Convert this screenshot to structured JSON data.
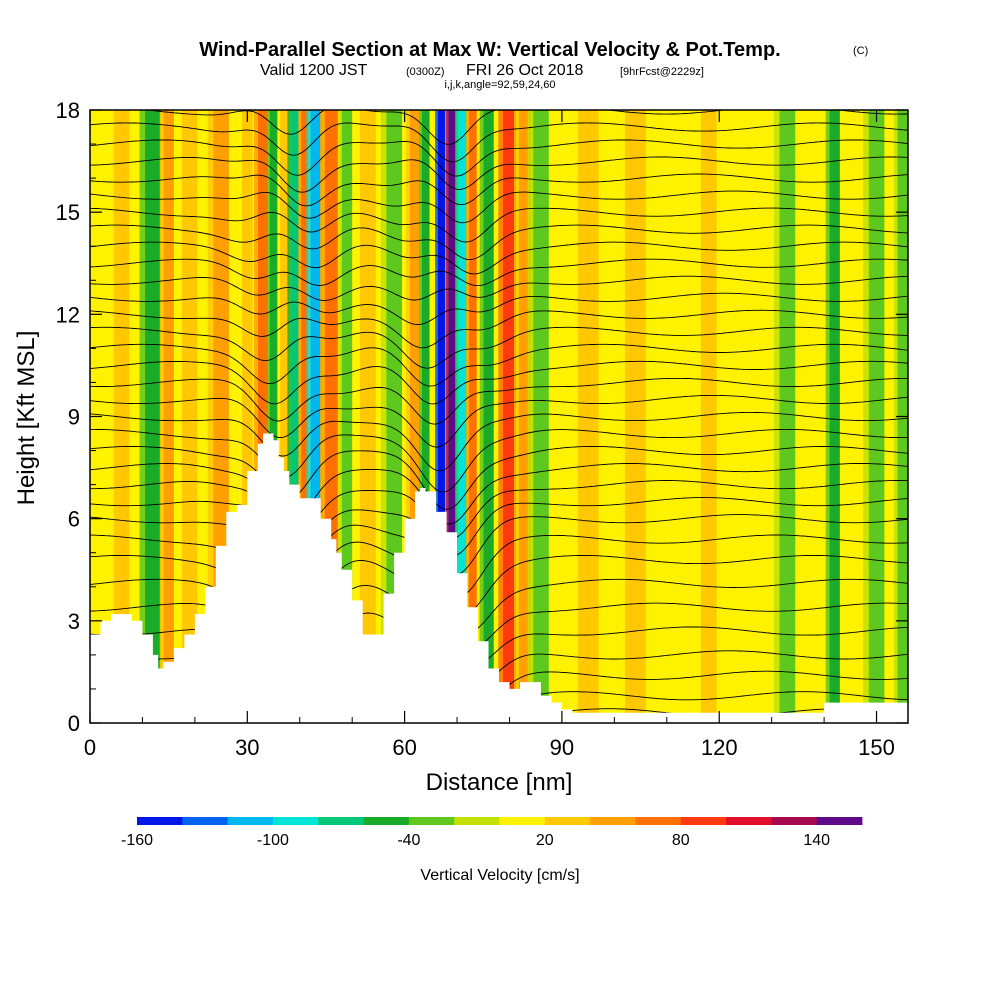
{
  "title": {
    "main": "Wind-Parallel Section at Max W: Vertical Velocity & Pot.Temp.",
    "copyright": "(C)",
    "valid_prefix": "Valid 1200 JST",
    "valid_utc": "(0300Z)",
    "valid_date": "FRI 26 Oct 2018",
    "forecast": "[9hrFcst@2229z]",
    "params": "i,j,k,angle=92,59,24,60"
  },
  "chart_data": {
    "type": "heatmap",
    "xlabel": "Distance [nm]",
    "ylabel": "Height [Kft MSL]",
    "xlim": [
      0,
      156
    ],
    "ylim": [
      0,
      18
    ],
    "x_ticks": [
      "0",
      "30",
      "60",
      "90",
      "120",
      "150"
    ],
    "x_tick_values": [
      0,
      30,
      60,
      90,
      120,
      150
    ],
    "y_ticks": [
      "0",
      "3",
      "6",
      "9",
      "12",
      "15",
      "18"
    ],
    "y_tick_values": [
      0,
      3,
      6,
      9,
      12,
      15,
      18
    ],
    "colorbar": {
      "label": "Vertical Velocity [cm/s]",
      "tick_labels": [
        "-160",
        "-100",
        "-40",
        "20",
        "80",
        "140"
      ],
      "tick_values": [
        -160,
        -100,
        -40,
        20,
        80,
        140
      ],
      "levels": [
        -160,
        -140,
        -120,
        -100,
        -80,
        -60,
        -40,
        -20,
        0,
        20,
        40,
        60,
        80,
        100,
        120,
        140,
        160
      ],
      "colors": [
        "#0015e8",
        "#0062f0",
        "#00b8f0",
        "#00e5d8",
        "#00c878",
        "#1aac28",
        "#5ec81e",
        "#c2e000",
        "#fff200",
        "#ffc800",
        "#ffa000",
        "#ff7000",
        "#ff3a10",
        "#e0102a",
        "#a80a50",
        "#5e0a8a"
      ]
    },
    "terrain": {
      "x": [
        0,
        2,
        4,
        6,
        8,
        10,
        12,
        13,
        14,
        16,
        18,
        20,
        22,
        24,
        26,
        28,
        30,
        32,
        33,
        34,
        35,
        36,
        37,
        38,
        40,
        42,
        44,
        46,
        47,
        48,
        50,
        52,
        54,
        56,
        58,
        60,
        62,
        63,
        64,
        66,
        68,
        70,
        72,
        74,
        76,
        78,
        80,
        82,
        84,
        86,
        88,
        90,
        92,
        96,
        100,
        110,
        120,
        130,
        138,
        140,
        145,
        150,
        156
      ],
      "y": [
        2.6,
        3.0,
        3.2,
        3.2,
        3.0,
        2.6,
        2.0,
        1.6,
        1.8,
        2.2,
        2.6,
        3.2,
        4.0,
        5.2,
        6.2,
        6.4,
        7.4,
        8.2,
        8.5,
        8.5,
        8.3,
        7.8,
        7.4,
        7.0,
        6.6,
        6.6,
        6.0,
        5.4,
        5.0,
        4.5,
        3.6,
        2.6,
        2.6,
        3.8,
        5.0,
        6.0,
        6.8,
        6.9,
        6.8,
        6.2,
        5.6,
        4.4,
        3.4,
        2.4,
        1.6,
        1.2,
        1.0,
        1.2,
        1.2,
        0.8,
        0.6,
        0.4,
        0.3,
        0.3,
        0.3,
        0.3,
        0.3,
        0.3,
        0.3,
        0.6,
        0.6,
        0.6,
        0.6
      ]
    },
    "vertical_velocity_bands": [
      {
        "x": 6,
        "width": 3,
        "value": 30
      },
      {
        "x": 12,
        "width": 3,
        "value": -45
      },
      {
        "x": 15,
        "width": 2,
        "value": 55
      },
      {
        "x": 19,
        "width": 3,
        "value": 25
      },
      {
        "x": 25,
        "width": 3,
        "value": 40
      },
      {
        "x": 30,
        "width": 2,
        "value": 30
      },
      {
        "x": 33,
        "width": 2,
        "value": 65
      },
      {
        "x": 35,
        "width": 1.5,
        "value": -55
      },
      {
        "x": 37,
        "width": 1.5,
        "value": 35
      },
      {
        "x": 39,
        "width": 1.6,
        "value": -70
      },
      {
        "x": 41,
        "width": 1.5,
        "value": 70
      },
      {
        "x": 43,
        "width": 2,
        "value": -110
      },
      {
        "x": 46,
        "width": 2.5,
        "value": 60
      },
      {
        "x": 49,
        "width": 2,
        "value": -40
      },
      {
        "x": 53,
        "width": 3,
        "value": 30
      },
      {
        "x": 58,
        "width": 3,
        "value": -30
      },
      {
        "x": 62,
        "width": 2,
        "value": 40
      },
      {
        "x": 64,
        "width": 1.5,
        "value": -50
      },
      {
        "x": 67,
        "width": 1.4,
        "value": -150
      },
      {
        "x": 69,
        "width": 1.4,
        "value": 150
      },
      {
        "x": 71,
        "width": 1.6,
        "value": -90
      },
      {
        "x": 73,
        "width": 1.5,
        "value": 60
      },
      {
        "x": 76,
        "width": 2,
        "value": -60
      },
      {
        "x": 80,
        "width": 2.5,
        "value": 85
      },
      {
        "x": 83,
        "width": 2.5,
        "value": 45
      },
      {
        "x": 86,
        "width": 3,
        "value": -35
      },
      {
        "x": 95,
        "width": 4,
        "value": 25
      },
      {
        "x": 104,
        "width": 4,
        "value": 30
      },
      {
        "x": 118,
        "width": 3,
        "value": 25
      },
      {
        "x": 133,
        "width": 3,
        "value": -40
      },
      {
        "x": 142,
        "width": 2,
        "value": -45
      },
      {
        "x": 150,
        "width": 3,
        "value": -35
      },
      {
        "x": 155,
        "width": 2,
        "value": -40
      }
    ],
    "theta_contour_base_heights": [
      0.3,
      0.8,
      1.4,
      2.0,
      2.7,
      3.4,
      4.1,
      4.8,
      5.4,
      6.0,
      6.5,
      7.0,
      7.5,
      8.0,
      8.5,
      9.0,
      9.5,
      10.0,
      10.5,
      11.0,
      11.5,
      12.0,
      12.5,
      13.0,
      13.5,
      14.0,
      14.5,
      15.0,
      15.5,
      16.0,
      16.5,
      17.0,
      17.5,
      18.0
    ],
    "mountain_wave_centers": [
      {
        "x": 38,
        "amplitude": 1.4
      },
      {
        "x": 68,
        "amplitude": 1.8
      }
    ]
  }
}
